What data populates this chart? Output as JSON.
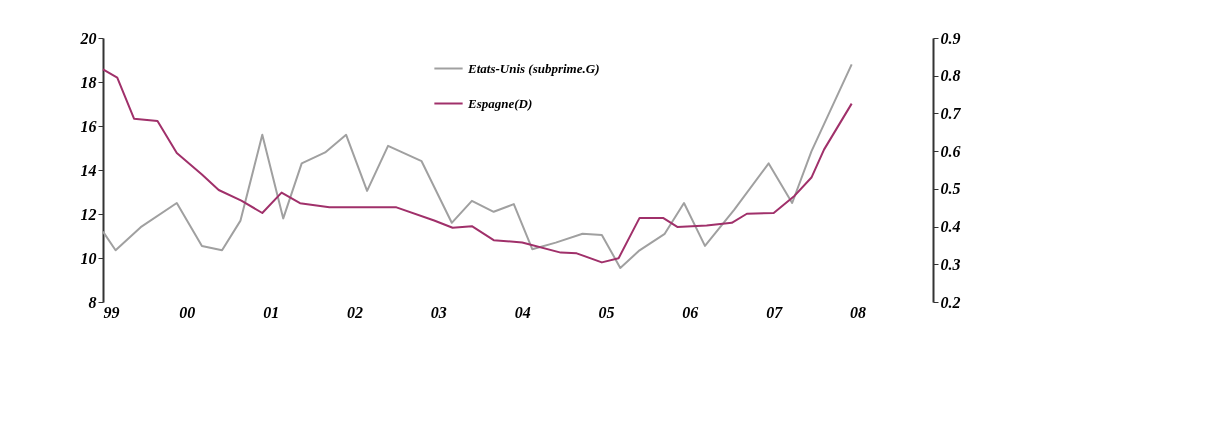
{
  "chart_data": {
    "type": "line",
    "xlim": [
      1999,
      2008.9
    ],
    "xticks": [
      {
        "value": 1999,
        "label": "99"
      },
      {
        "value": 2000,
        "label": "00"
      },
      {
        "value": 2001,
        "label": "01"
      },
      {
        "value": 2002,
        "label": "02"
      },
      {
        "value": 2003,
        "label": "03"
      },
      {
        "value": 2004,
        "label": "04"
      },
      {
        "value": 2005,
        "label": "05"
      },
      {
        "value": 2006,
        "label": "06"
      },
      {
        "value": 2007,
        "label": "07"
      },
      {
        "value": 2008,
        "label": "08"
      }
    ],
    "ylim": [
      8,
      20
    ],
    "yticks": [
      8,
      10,
      12,
      14,
      16,
      18,
      20
    ],
    "y2lim": [
      0.2,
      0.9
    ],
    "y2ticks": [
      0.2,
      0.3,
      0.4,
      0.5,
      0.6,
      0.7,
      0.8,
      0.9
    ],
    "legend": "top",
    "grid": false,
    "series": [
      {
        "name": "Etats-Unis (subprime.G)",
        "color": "#a0a0a0",
        "x": [
          1999.0,
          1999.15,
          1999.45,
          1999.88,
          2000.18,
          2000.42,
          2000.64,
          2000.9,
          2001.15,
          2001.37,
          2001.65,
          2001.9,
          2002.15,
          2002.4,
          2002.8,
          2003.16,
          2003.4,
          2003.66,
          2003.9,
          2004.12,
          2004.4,
          2004.72,
          2004.95,
          2005.17,
          2005.4,
          2005.7,
          2005.93,
          2006.18,
          2006.53,
          2006.94,
          2007.22,
          2007.45,
          2007.93
        ],
        "values": [
          11.2,
          10.35,
          11.4,
          12.5,
          10.55,
          10.35,
          11.7,
          15.6,
          11.8,
          14.3,
          14.8,
          15.6,
          13.05,
          15.1,
          14.4,
          11.6,
          12.6,
          12.1,
          12.45,
          10.4,
          10.7,
          11.1,
          11.05,
          9.55,
          10.35,
          11.1,
          12.5,
          10.55,
          12.2,
          14.3,
          12.5,
          14.85,
          18.8
        ]
      },
      {
        "name": "Espagne(D)",
        "color": "#a0306a",
        "axis": "y2",
        "x": [
          1999.0,
          1999.17,
          1999.37,
          1999.65,
          1999.88,
          2000.18,
          2000.38,
          2000.65,
          2000.9,
          2001.13,
          2001.35,
          2001.7,
          2002.5,
          2002.95,
          2003.17,
          2003.4,
          2003.66,
          2004.0,
          2004.46,
          2004.65,
          2004.95,
          2005.15,
          2005.4,
          2005.68,
          2005.85,
          2006.2,
          2006.5,
          2006.68,
          2007.0,
          2007.25,
          2007.45,
          2007.6,
          2007.93
        ],
        "values": [
          0.817,
          0.795,
          0.686,
          0.68,
          0.595,
          0.538,
          0.497,
          0.469,
          0.436,
          0.49,
          0.462,
          0.451,
          0.451,
          0.416,
          0.397,
          0.401,
          0.364,
          0.358,
          0.331,
          0.329,
          0.305,
          0.316,
          0.423,
          0.423,
          0.399,
          0.403,
          0.41,
          0.434,
          0.436,
          0.482,
          0.53,
          0.604,
          0.726
        ]
      }
    ]
  }
}
